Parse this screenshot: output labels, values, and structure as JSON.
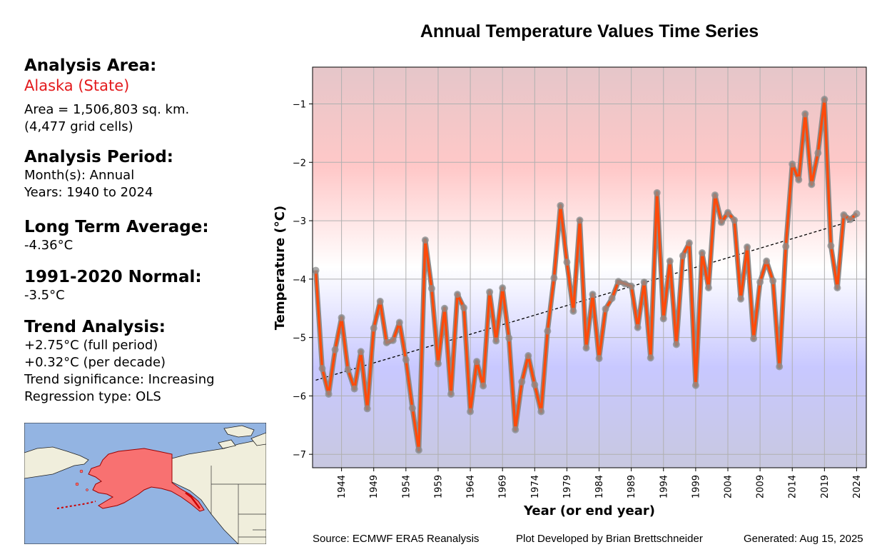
{
  "left_panel": {
    "area_heading": "Analysis Area:",
    "area_name": "Alaska (State)",
    "area_size": "Area = 1,506,803 sq. km.",
    "grid_cells": "(4,477 grid cells)",
    "period_heading": "Analysis Period:",
    "months": "Month(s): Annual",
    "years": "Years: 1940 to 2024",
    "lta_heading": "Long Term Average:",
    "lta_value": "-4.36°C",
    "normal_heading": "1991-2020 Normal:",
    "normal_value": "-3.5°C",
    "trend_heading": "Trend Analysis:",
    "trend_full": "+2.75°C (full period)",
    "trend_decade": "+0.32°C (per decade)",
    "trend_sig": "Trend significance: Increasing",
    "regression": "Regression type: OLS"
  },
  "footer": {
    "source": "Source: ECMWF ERA5 Reanalysis",
    "developer": "Plot Developed by Brian Brettschneider",
    "generated": "Generated: Aug 15, 2025"
  },
  "colors": {
    "line": "#ff4a0a",
    "marker": "#8c8c8c",
    "region": "#f87171",
    "ocean": "#93b4e2",
    "land": "#f0eedc"
  },
  "chart_data": {
    "type": "line",
    "title": "Annual Temperature Values Time Series",
    "xlabel": "Year (or end year)",
    "ylabel": "Temperature (°C)",
    "xlim": [
      1939.5,
      2025.5
    ],
    "ylim": [
      -7.23,
      -0.37
    ],
    "xticks": [
      1944,
      1949,
      1954,
      1959,
      1964,
      1969,
      1974,
      1979,
      1984,
      1989,
      1994,
      1999,
      2004,
      2009,
      2014,
      2019,
      2024
    ],
    "yticks": [
      -7,
      -6,
      -5,
      -4,
      -3,
      -2,
      -1
    ],
    "grid": true,
    "background": "red above normal, blue below normal gradient",
    "x": [
      1940,
      1941,
      1942,
      1943,
      1944,
      1945,
      1946,
      1947,
      1948,
      1949,
      1950,
      1951,
      1952,
      1953,
      1954,
      1955,
      1956,
      1957,
      1958,
      1959,
      1960,
      1961,
      1962,
      1963,
      1964,
      1965,
      1966,
      1967,
      1968,
      1969,
      1970,
      1971,
      1972,
      1973,
      1974,
      1975,
      1976,
      1977,
      1978,
      1979,
      1980,
      1981,
      1982,
      1983,
      1984,
      1985,
      1986,
      1987,
      1988,
      1989,
      1990,
      1991,
      1992,
      1993,
      1994,
      1995,
      1996,
      1997,
      1998,
      1999,
      2000,
      2001,
      2002,
      2003,
      2004,
      2005,
      2006,
      2007,
      2008,
      2009,
      2010,
      2011,
      2012,
      2013,
      2014,
      2015,
      2016,
      2017,
      2018,
      2019,
      2020,
      2021,
      2022,
      2023,
      2024
    ],
    "series": [
      {
        "values": [
          -3.85,
          -5.53,
          -5.97,
          -5.21,
          -4.66,
          -5.55,
          -5.88,
          -5.24,
          -6.22,
          -4.84,
          -4.38,
          -5.09,
          -5.05,
          -4.74,
          -5.38,
          -6.21,
          -6.93,
          -3.33,
          -4.16,
          -5.45,
          -4.5,
          -5.97,
          -4.26,
          -4.49,
          -6.27,
          -5.41,
          -5.83,
          -4.22,
          -5.06,
          -4.15,
          -5.01,
          -6.58,
          -5.76,
          -5.31,
          -5.81,
          -6.27,
          -4.89,
          -3.98,
          -2.74,
          -3.71,
          -4.55,
          -2.99,
          -5.18,
          -4.26,
          -5.36,
          -4.51,
          -4.33,
          -4.04,
          -4.08,
          -4.12,
          -4.83,
          -4.05,
          -5.35,
          -2.52,
          -4.68,
          -3.69,
          -5.12,
          -3.6,
          -3.38,
          -5.82,
          -3.55,
          -4.15,
          -2.56,
          -3.03,
          -2.86,
          -2.99,
          -4.34,
          -3.45,
          -5.02,
          -4.05,
          -3.69,
          -4.03,
          -5.5,
          -3.44,
          -2.03,
          -2.3,
          -1.17,
          -2.38,
          -1.84,
          -0.92,
          -3.43,
          -4.15,
          -2.9,
          -2.98,
          -2.88
        ]
      }
    ],
    "trend": {
      "start_year": 1940,
      "start_value": -5.73,
      "end_year": 2024,
      "end_value": -2.98
    }
  }
}
